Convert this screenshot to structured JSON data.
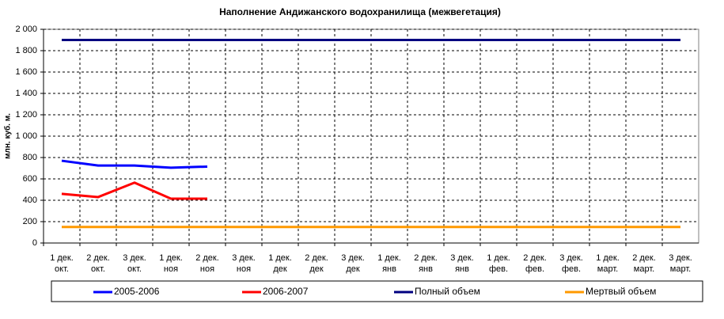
{
  "chart_data": {
    "type": "line",
    "title": "Наполнение Андижанского водохранилища (межвегетация)",
    "y_label": "млн. куб. м.",
    "categories": [
      [
        "1 дек.",
        "окт."
      ],
      [
        "2 дек.",
        "окт."
      ],
      [
        "3 дек.",
        "окт."
      ],
      [
        "1 дек.",
        "ноя"
      ],
      [
        "2 дек.",
        "ноя"
      ],
      [
        "3 дек.",
        "ноя"
      ],
      [
        "1 дек.",
        "дек"
      ],
      [
        "2 дек.",
        "дек"
      ],
      [
        "3 дек.",
        "дек"
      ],
      [
        "1 дек.",
        "янв"
      ],
      [
        "2 дек.",
        "янв"
      ],
      [
        "3 дек.",
        "янв"
      ],
      [
        "1 дек.",
        "фев."
      ],
      [
        "2 дек.",
        "фев."
      ],
      [
        "3 дек.",
        "фев."
      ],
      [
        "1 дек.",
        "март."
      ],
      [
        "2 дек.",
        "март."
      ],
      [
        "3 дек.",
        "март."
      ]
    ],
    "series": [
      {
        "name": "2005-2006",
        "color": "#0000ff",
        "values": [
          770,
          725,
          725,
          705,
          715,
          null,
          null,
          null,
          null,
          null,
          null,
          null,
          null,
          null,
          null,
          null,
          null,
          null
        ]
      },
      {
        "name": "2006-2007",
        "color": "#ff0000",
        "values": [
          460,
          430,
          565,
          415,
          415,
          null,
          null,
          null,
          null,
          null,
          null,
          null,
          null,
          null,
          null,
          null,
          null,
          null
        ]
      },
      {
        "name": "Полный объем",
        "color": "#000080",
        "values": [
          1900,
          1900,
          1900,
          1900,
          1900,
          1900,
          1900,
          1900,
          1900,
          1900,
          1900,
          1900,
          1900,
          1900,
          1900,
          1900,
          1900,
          1900
        ]
      },
      {
        "name": "Мертвый объем",
        "color": "#ff9900",
        "values": [
          150,
          150,
          150,
          150,
          150,
          150,
          150,
          150,
          150,
          150,
          150,
          150,
          150,
          150,
          150,
          150,
          150,
          150
        ]
      }
    ],
    "ylim": [
      0,
      2000
    ],
    "yticks": [
      0,
      200,
      400,
      600,
      800,
      {
        "value": 1000,
        "label": "1 000"
      },
      {
        "value": 1200,
        "label": "1 200"
      },
      {
        "value": 1400,
        "label": "1 400"
      },
      {
        "value": 1600,
        "label": "1 600"
      },
      {
        "value": 1800,
        "label": "1 800"
      },
      {
        "value": 2000,
        "label": "2 000"
      }
    ],
    "grid": true,
    "legend": "bottom"
  }
}
